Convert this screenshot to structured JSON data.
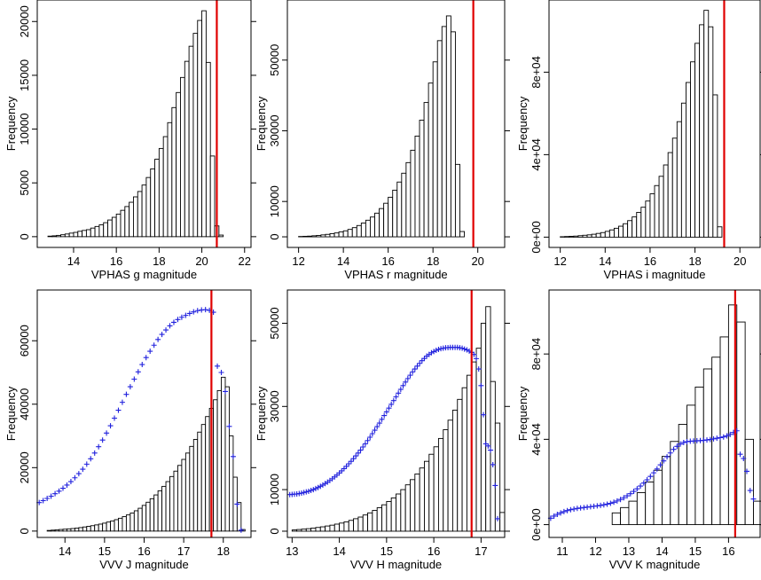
{
  "colors": {
    "bar_fill": "#ffffff",
    "bar_stroke": "#000000",
    "cutoff_line": "#e00000",
    "cumulative_marker": "#2020dd"
  },
  "chart_data": [
    {
      "type": "bar",
      "title": "",
      "xlabel": "VPHAS g magnitude",
      "ylabel": "Frequency",
      "xlim": [
        12.3,
        22.3
      ],
      "ylim": [
        -1000,
        22000
      ],
      "x_ticks": [
        14,
        16,
        18,
        20,
        22
      ],
      "x_tick_labels": [
        "14",
        "16",
        "18",
        "20",
        "22"
      ],
      "y_ticks": [
        0,
        5000,
        10000,
        15000,
        20000
      ],
      "y_tick_labels": [
        "0",
        "5000",
        "10000",
        "15000",
        "20000"
      ],
      "bin_start": 12.8,
      "bin_width": 0.2,
      "values": [
        50,
        80,
        120,
        180,
        250,
        330,
        400,
        500,
        580,
        650,
        800,
        950,
        1100,
        1300,
        1550,
        1800,
        2100,
        2450,
        2800,
        3200,
        3700,
        4200,
        4800,
        5500,
        6300,
        7200,
        8200,
        9300,
        10600,
        12000,
        13400,
        14800,
        16300,
        17700,
        18900,
        20100,
        21000,
        16200,
        7500,
        1000,
        150
      ],
      "cutoff": 20.7,
      "cumulative": null
    },
    {
      "type": "bar",
      "title": "",
      "xlabel": "VPHAS r magnitude",
      "ylabel": "Frequency",
      "xlim": [
        11.5,
        21.2
      ],
      "ylim": [
        -3000,
        67000
      ],
      "x_ticks": [
        12,
        14,
        16,
        18,
        20
      ],
      "x_tick_labels": [
        "12",
        "14",
        "16",
        "18",
        "20"
      ],
      "y_ticks": [
        0,
        10000,
        30000,
        50000
      ],
      "y_tick_labels": [
        "0",
        "10000",
        "30000",
        "50000"
      ],
      "bin_start": 12.0,
      "bin_width": 0.2,
      "values": [
        100,
        150,
        200,
        300,
        400,
        550,
        700,
        900,
        1100,
        1400,
        1700,
        2100,
        2600,
        3200,
        3900,
        4700,
        5600,
        6700,
        8000,
        9500,
        11200,
        13200,
        15500,
        18000,
        21000,
        24500,
        28500,
        33000,
        38000,
        43500,
        49500,
        55500,
        59500,
        62500,
        58000,
        20500,
        1500
      ],
      "cutoff": 19.8,
      "cumulative": null
    },
    {
      "type": "bar",
      "title": "",
      "xlabel": "VPHAS i magnitude",
      "ylabel": "Frequency",
      "xlim": [
        11.5,
        20.9
      ],
      "ylim": [
        -5000,
        115000
      ],
      "x_ticks": [
        12,
        14,
        16,
        18,
        20
      ],
      "x_tick_labels": [
        "12",
        "14",
        "16",
        "18",
        "20"
      ],
      "y_ticks": [
        0,
        40000,
        80000
      ],
      "y_tick_labels": [
        "0e+00",
        "4e+04",
        "8e+04"
      ],
      "bin_start": 12.0,
      "bin_width": 0.2,
      "values": [
        200,
        300,
        400,
        500,
        700,
        900,
        1100,
        1400,
        1800,
        2200,
        2800,
        3500,
        4300,
        5300,
        6500,
        8000,
        9800,
        12000,
        14500,
        17500,
        21000,
        25000,
        29500,
        35000,
        41000,
        48000,
        56000,
        65000,
        75000,
        85000,
        94000,
        103000,
        110000,
        102000,
        69000,
        5000
      ],
      "cutoff": 19.3,
      "cumulative": null
    },
    {
      "type": "bar",
      "title": "",
      "xlabel": "VVV J magnitude",
      "ylabel": "Frequency",
      "xlim": [
        13.3,
        18.7
      ],
      "ylim": [
        -2000,
        76000
      ],
      "x_ticks": [
        14,
        15,
        16,
        17,
        18
      ],
      "x_tick_labels": [
        "14",
        "15",
        "16",
        "17",
        "18"
      ],
      "y_ticks": [
        0,
        20000,
        40000,
        60000
      ],
      "y_tick_labels": [
        "0",
        "20000",
        "40000",
        "60000"
      ],
      "bin_start": 13.55,
      "bin_width": 0.1,
      "values": [
        200,
        300,
        400,
        500,
        600,
        700,
        800,
        950,
        1100,
        1300,
        1500,
        1700,
        1950,
        2200,
        2500,
        2850,
        3200,
        3600,
        4050,
        4550,
        5100,
        5700,
        6400,
        7200,
        8100,
        9100,
        10200,
        11400,
        12700,
        14100,
        15600,
        17200,
        18900,
        20700,
        22600,
        24600,
        26700,
        28900,
        31200,
        33600,
        36100,
        38700,
        41400,
        44300,
        48500,
        45500,
        30000,
        17000,
        9000,
        500
      ],
      "cutoff": 17.7,
      "cumulative": {
        "x": [
          13.35,
          13.45,
          13.55,
          13.65,
          13.75,
          13.85,
          13.95,
          14.05,
          14.15,
          14.25,
          14.35,
          14.45,
          14.55,
          14.65,
          14.75,
          14.85,
          14.95,
          15.05,
          15.15,
          15.25,
          15.35,
          15.45,
          15.55,
          15.65,
          15.75,
          15.85,
          15.95,
          16.05,
          16.15,
          16.25,
          16.35,
          16.45,
          16.55,
          16.65,
          16.75,
          16.85,
          16.95,
          17.05,
          17.15,
          17.25,
          17.35,
          17.45,
          17.55,
          17.65,
          17.75,
          17.85,
          17.95,
          18.05,
          18.15,
          18.25,
          18.35,
          18.45
        ],
        "y": [
          9000,
          9600,
          10300,
          11000,
          11800,
          12600,
          13500,
          14500,
          15600,
          16800,
          18100,
          19500,
          21100,
          22800,
          24600,
          26600,
          28700,
          30900,
          33200,
          35600,
          38100,
          40600,
          43100,
          45500,
          47900,
          50200,
          52500,
          54700,
          56700,
          58600,
          60400,
          62000,
          63400,
          64700,
          65800,
          66700,
          67400,
          68000,
          68600,
          69100,
          69500,
          69700,
          69800,
          69600,
          69000,
          52000,
          50000,
          44000,
          33000,
          23500,
          8500,
          300
        ]
      }
    },
    {
      "type": "bar",
      "title": "",
      "xlabel": "VVV H magnitude",
      "ylabel": "Frequency",
      "xlim": [
        12.9,
        17.5
      ],
      "ylim": [
        -1500,
        58000
      ],
      "x_ticks": [
        13,
        14,
        15,
        16,
        17
      ],
      "x_tick_labels": [
        "13",
        "14",
        "15",
        "16",
        "17"
      ],
      "y_ticks": [
        0,
        10000,
        30000,
        50000
      ],
      "y_tick_labels": [
        "0",
        "10000",
        "30000",
        "50000"
      ],
      "bin_start": 13.0,
      "bin_width": 0.1,
      "values": [
        300,
        400,
        500,
        600,
        750,
        900,
        1050,
        1250,
        1450,
        1700,
        1950,
        2250,
        2600,
        3000,
        3400,
        3900,
        4400,
        5000,
        5650,
        6350,
        7150,
        8000,
        8950,
        10000,
        11150,
        12400,
        13750,
        15200,
        16800,
        18500,
        20300,
        22300,
        24400,
        26700,
        29100,
        31700,
        34500,
        37500,
        40700,
        44000,
        50000,
        54000,
        36000,
        26000,
        4500
      ],
      "cutoff": 16.8,
      "cumulative": {
        "x": [
          12.95,
          13.0,
          13.05,
          13.1,
          13.15,
          13.2,
          13.25,
          13.3,
          13.35,
          13.4,
          13.45,
          13.5,
          13.55,
          13.6,
          13.65,
          13.7,
          13.75,
          13.8,
          13.85,
          13.9,
          13.95,
          14.0,
          14.05,
          14.1,
          14.15,
          14.2,
          14.25,
          14.3,
          14.35,
          14.4,
          14.45,
          14.5,
          14.55,
          14.6,
          14.65,
          14.7,
          14.75,
          14.8,
          14.85,
          14.9,
          14.95,
          15.0,
          15.05,
          15.1,
          15.15,
          15.2,
          15.25,
          15.3,
          15.35,
          15.4,
          15.45,
          15.5,
          15.55,
          15.6,
          15.65,
          15.7,
          15.75,
          15.8,
          15.85,
          15.9,
          15.95,
          16.0,
          16.05,
          16.1,
          16.15,
          16.2,
          16.25,
          16.3,
          16.35,
          16.4,
          16.45,
          16.5,
          16.55,
          16.6,
          16.65,
          16.7,
          16.75,
          16.8,
          16.85,
          16.9,
          16.95,
          17.0,
          17.05,
          17.1,
          17.15,
          17.2,
          17.25,
          17.3,
          17.35
        ],
        "y": [
          8800,
          8850,
          8900,
          8950,
          9050,
          9150,
          9300,
          9450,
          9600,
          9800,
          10000,
          10250,
          10500,
          10800,
          11100,
          11450,
          11800,
          12200,
          12600,
          13050,
          13500,
          14000,
          14500,
          15050,
          15600,
          16200,
          16800,
          17450,
          18100,
          18800,
          19500,
          20250,
          21000,
          21800,
          22600,
          23450,
          24300,
          25150,
          26000,
          26900,
          27800,
          28700,
          29600,
          30500,
          31400,
          32300,
          33200,
          34100,
          35000,
          35850,
          36700,
          37500,
          38300,
          39000,
          39700,
          40350,
          41000,
          41550,
          42100,
          42500,
          42900,
          43200,
          43500,
          43700,
          43900,
          44000,
          44100,
          44150,
          44200,
          44200,
          44200,
          44200,
          44100,
          44000,
          43800,
          43600,
          43300,
          43000,
          42500,
          41500,
          39000,
          35000,
          28000,
          21000,
          20500,
          19500,
          16000,
          11000,
          3000
        ]
      }
    },
    {
      "type": "bar",
      "title": "",
      "xlabel": "VVV K magnitude",
      "ylabel": "Frequency",
      "xlim": [
        10.6,
        16.95
      ],
      "ylim": [
        -6000,
        110000
      ],
      "x_ticks": [
        11,
        12,
        13,
        14,
        15,
        16,
        17
      ],
      "x_tick_labels": [
        "11",
        "12",
        "13",
        "14",
        "15",
        "16",
        "17"
      ],
      "y_ticks": [
        0,
        40000,
        80000
      ],
      "y_tick_labels": [
        "0e+00",
        "4e+04",
        "8e+04"
      ],
      "bin_start": 12.5,
      "bin_width": 0.25,
      "values": [
        5500,
        8000,
        11000,
        15000,
        20000,
        25500,
        32000,
        39000,
        47000,
        56000,
        64500,
        73000,
        78500,
        88000,
        103000,
        95000,
        40000,
        11000
      ],
      "cutoff": 16.2,
      "cumulative": {
        "x": [
          10.65,
          10.75,
          10.85,
          10.95,
          11.05,
          11.15,
          11.25,
          11.35,
          11.45,
          11.55,
          11.65,
          11.75,
          11.85,
          11.95,
          12.05,
          12.15,
          12.25,
          12.35,
          12.45,
          12.55,
          12.65,
          12.75,
          12.85,
          12.95,
          13.05,
          13.15,
          13.25,
          13.35,
          13.45,
          13.55,
          13.65,
          13.75,
          13.85,
          13.95,
          14.05,
          14.15,
          14.25,
          14.35,
          14.45,
          14.55,
          14.65,
          14.75,
          14.85,
          14.95,
          15.05,
          15.15,
          15.25,
          15.35,
          15.45,
          15.55,
          15.65,
          15.75,
          15.85,
          15.95,
          16.05,
          16.15,
          16.25,
          16.35,
          16.45,
          16.55,
          16.65,
          16.75
        ],
        "y": [
          3000,
          4000,
          4800,
          5500,
          6100,
          6600,
          7000,
          7300,
          7600,
          7800,
          8000,
          8200,
          8400,
          8600,
          8800,
          9000,
          9300,
          9600,
          10000,
          10500,
          11100,
          11800,
          12600,
          13500,
          14500,
          15600,
          16800,
          18100,
          19500,
          21000,
          22600,
          24300,
          26100,
          28000,
          29900,
          31800,
          33600,
          35300,
          36700,
          37800,
          38500,
          38900,
          39100,
          39200,
          39300,
          39400,
          39500,
          39700,
          39900,
          40200,
          40500,
          40800,
          41100,
          41600,
          42300,
          43200,
          44000,
          33000,
          31000,
          25000,
          16000,
          12000
        ]
      }
    }
  ]
}
